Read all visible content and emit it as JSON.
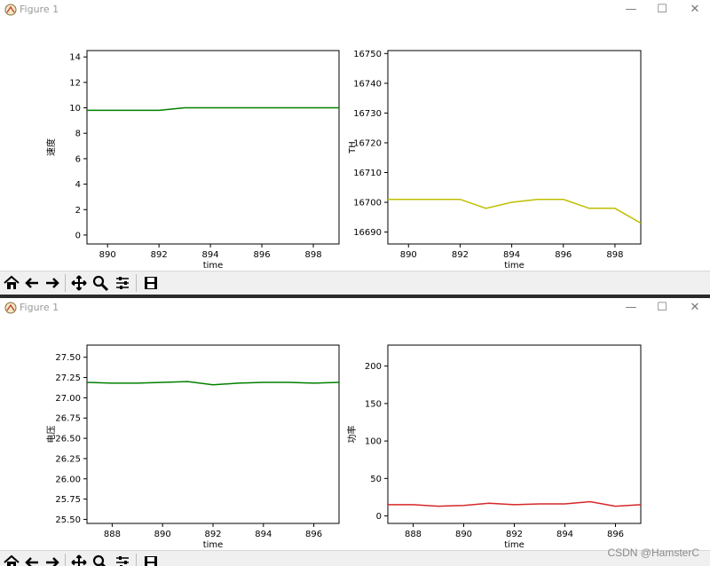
{
  "windows": [
    {
      "title": "Figure 1",
      "controls": {
        "minimize": "—",
        "maximize": "☐",
        "close": "✕"
      },
      "toolbar": [
        "home-icon",
        "back-icon",
        "forward-icon",
        "pan-icon",
        "zoom-icon",
        "configure-subplots-icon",
        "save-icon"
      ]
    },
    {
      "title": "Figure 1",
      "controls": {
        "minimize": "—",
        "maximize": "☐",
        "close": "✕"
      },
      "toolbar": [
        "home-icon",
        "back-icon",
        "forward-icon",
        "pan-icon",
        "zoom-icon",
        "configure-subplots-icon",
        "save-icon"
      ]
    }
  ],
  "watermark": "CSDN @HamsterC",
  "chart_data": [
    {
      "type": "line",
      "xlabel": "time",
      "ylabel": "速度",
      "color": "#008000",
      "xlim": [
        889.2,
        899
      ],
      "ylim": [
        -0.7,
        14.5
      ],
      "xticks": [
        890,
        892,
        894,
        896,
        898
      ],
      "yticks": [
        0,
        2,
        4,
        6,
        8,
        10,
        12,
        14
      ],
      "x": [
        889,
        890,
        891,
        892,
        893,
        894,
        895,
        896,
        897,
        898,
        899
      ],
      "y": [
        9.8,
        9.8,
        9.8,
        9.8,
        10.0,
        10.0,
        10.0,
        10.0,
        10.0,
        10.0,
        10.0
      ]
    },
    {
      "type": "line",
      "xlabel": "time",
      "ylabel": "TH",
      "color": "#bfbf00",
      "xlim": [
        889.2,
        899
      ],
      "ylim": [
        16686,
        16751
      ],
      "xticks": [
        890,
        892,
        894,
        896,
        898
      ],
      "yticks": [
        16690,
        16700,
        16710,
        16720,
        16730,
        16740,
        16750
      ],
      "x": [
        889,
        890,
        891,
        892,
        893,
        894,
        895,
        896,
        897,
        898,
        899
      ],
      "y": [
        16701,
        16701,
        16701,
        16701,
        16698,
        16700,
        16701,
        16701,
        16698,
        16698,
        16693
      ]
    },
    {
      "type": "line",
      "xlabel": "time",
      "ylabel": "电压",
      "color": "#008000",
      "xlim": [
        887,
        897
      ],
      "ylim": [
        25.45,
        27.65
      ],
      "xticks": [
        888,
        890,
        892,
        894,
        896
      ],
      "yticks": [
        25.5,
        25.75,
        26.0,
        26.25,
        26.5,
        26.75,
        27.0,
        27.25,
        27.5
      ],
      "x": [
        887,
        888,
        889,
        890,
        891,
        892,
        893,
        894,
        895,
        896,
        897
      ],
      "y": [
        27.19,
        27.18,
        27.18,
        27.19,
        27.2,
        27.16,
        27.18,
        27.19,
        27.19,
        27.18,
        27.19
      ]
    },
    {
      "type": "line",
      "xlabel": "time",
      "ylabel": "功率",
      "color": "#d62728",
      "xlim": [
        887,
        897
      ],
      "ylim": [
        -10,
        228
      ],
      "xticks": [
        888,
        890,
        892,
        894,
        896
      ],
      "yticks": [
        0,
        50,
        100,
        150,
        200
      ],
      "x": [
        887,
        888,
        889,
        890,
        891,
        892,
        893,
        894,
        895,
        896,
        897
      ],
      "y": [
        15,
        15,
        13,
        14,
        17,
        15,
        16,
        16,
        19,
        13,
        15
      ]
    }
  ]
}
